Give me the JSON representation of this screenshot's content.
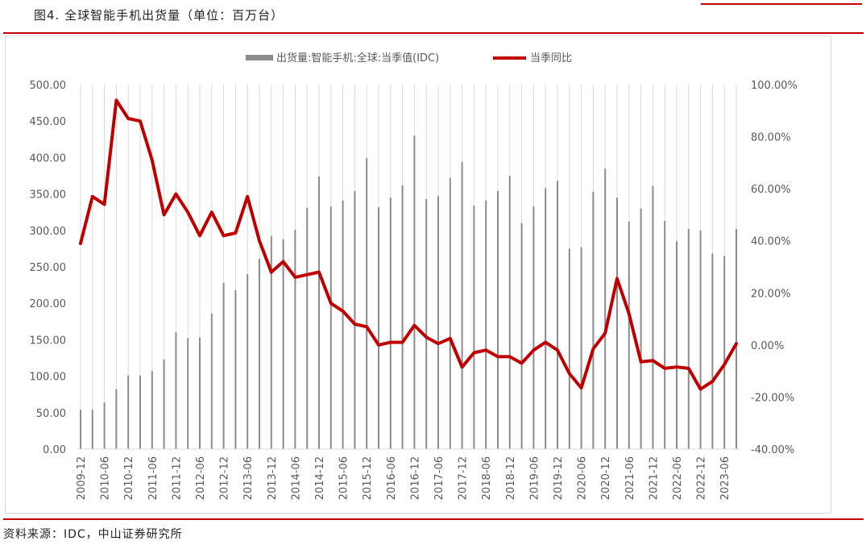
{
  "figure": {
    "title": "图4. 全球智能手机出货量（单位：百万台）",
    "source": "资料来源：IDC，中山证券研究所"
  },
  "colors": {
    "bar": "#8c8c8c",
    "line": "#c00000",
    "rule": "#c00000",
    "grid": "#d9d9d9"
  },
  "chart_data": {
    "type": "bar",
    "categories": [
      "2009-12",
      "2010-03",
      "2010-06",
      "2010-09",
      "2010-12",
      "2011-03",
      "2011-06",
      "2011-09",
      "2011-12",
      "2012-03",
      "2012-06",
      "2012-09",
      "2012-12",
      "2013-03",
      "2013-06",
      "2013-09",
      "2013-12",
      "2014-03",
      "2014-06",
      "2014-09",
      "2014-12",
      "2015-03",
      "2015-06",
      "2015-09",
      "2015-12",
      "2016-03",
      "2016-06",
      "2016-09",
      "2016-12",
      "2017-03",
      "2017-06",
      "2017-09",
      "2017-12",
      "2018-03",
      "2018-06",
      "2018-09",
      "2018-12",
      "2019-03",
      "2019-06",
      "2019-09",
      "2019-12",
      "2020-03",
      "2020-06",
      "2020-09",
      "2020-12",
      "2021-03",
      "2021-06",
      "2021-09",
      "2021-12",
      "2022-03",
      "2022-06",
      "2022-09",
      "2022-12",
      "2023-03",
      "2023-06",
      "2023-09"
    ],
    "x_tick_labels": [
      "2009-12",
      "2010-06",
      "2010-12",
      "2011-06",
      "2011-12",
      "2012-06",
      "2012-12",
      "2013-06",
      "2013-12",
      "2014-06",
      "2014-12",
      "2015-06",
      "2015-12",
      "2016-06",
      "2016-12",
      "2017-06",
      "2017-12",
      "2018-06",
      "2018-12",
      "2019-06",
      "2019-12",
      "2020-06",
      "2020-12",
      "2021-06",
      "2021-12",
      "2022-06",
      "2022-12",
      "2023-06"
    ],
    "series": [
      {
        "name": "出货量:智能手机:全球:当季值(IDC)",
        "kind": "bar",
        "axis": "left",
        "values": [
          54,
          54,
          64,
          82,
          101,
          101,
          107,
          123,
          160,
          152,
          153,
          186,
          228,
          218,
          240,
          261,
          292,
          288,
          301,
          331,
          374,
          333,
          341,
          354,
          399,
          332,
          345,
          362,
          430,
          343,
          347,
          372,
          394,
          334,
          341,
          354,
          375,
          310,
          333,
          358,
          368,
          275,
          277,
          353,
          385,
          345,
          312,
          330,
          361,
          313,
          285,
          302,
          300,
          268,
          265,
          302
        ]
      },
      {
        "name": "当季同比",
        "kind": "line",
        "axis": "right",
        "unit": "%",
        "values": [
          39,
          57,
          54,
          94,
          87,
          86,
          71,
          50,
          58,
          51,
          42,
          51,
          42,
          43,
          57,
          40,
          28,
          32,
          26,
          27,
          28,
          16,
          13,
          8,
          7,
          0,
          1,
          1,
          7.5,
          3,
          0.5,
          2.5,
          -8.5,
          -3,
          -2,
          -4.5,
          -4.5,
          -7,
          -2,
          1,
          -2,
          -11,
          -16.5,
          -1.5,
          4.5,
          25.5,
          12,
          -6.5,
          -6,
          -9,
          -8.5,
          -9,
          -17,
          -14,
          -7.5,
          0.5
        ]
      }
    ],
    "y_left": {
      "min": 0,
      "max": 500,
      "step": 50,
      "tick_labels": [
        "0.00",
        "50.00",
        "100.00",
        "150.00",
        "200.00",
        "250.00",
        "300.00",
        "350.00",
        "400.00",
        "450.00",
        "500.00"
      ]
    },
    "y_right": {
      "min": -40,
      "max": 100,
      "step": 20,
      "tick_labels": [
        "-40.00%",
        "-20.00%",
        "0.00%",
        "20.00%",
        "40.00%",
        "60.00%",
        "80.00%",
        "100.00%"
      ]
    },
    "legend": [
      "出货量:智能手机:全球:当季值(IDC)",
      "当季同比"
    ],
    "legend_position": "top",
    "grid": "vertical"
  }
}
